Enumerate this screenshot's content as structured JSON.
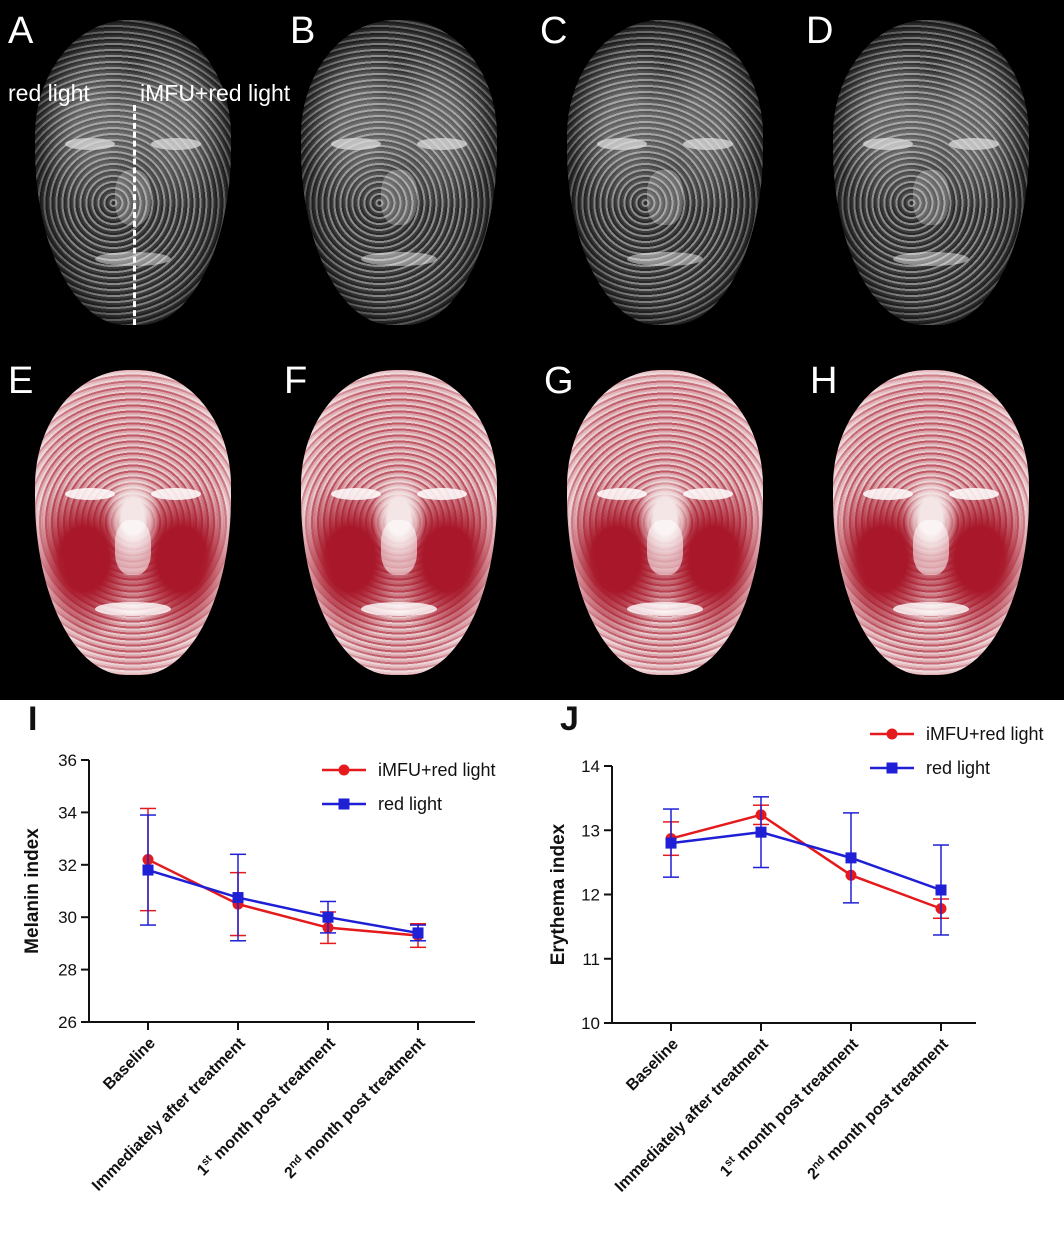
{
  "panels": {
    "top": [
      "A",
      "B",
      "C",
      "D"
    ],
    "bottom": [
      "E",
      "F",
      "G",
      "H"
    ],
    "annotation_left": "red light",
    "annotation_right": "iMFU+red light"
  },
  "colors": {
    "iMFU": "#e41a1c",
    "red_light": "#1f1fd6"
  },
  "chart_data": [
    {
      "panel": "I",
      "type": "line",
      "categories": [
        "Baseline",
        "Immediately after treatment",
        "1st month post treatment",
        "2nd month post treatment"
      ],
      "ylabel": "Melanin index",
      "ylim": [
        26,
        36
      ],
      "yticks": [
        26,
        28,
        30,
        32,
        34,
        36
      ],
      "legend": "top-right",
      "series": [
        {
          "name": "iMFU+red light",
          "marker": "circle",
          "values": [
            32.2,
            30.5,
            29.6,
            29.3
          ],
          "err": [
            1.95,
            1.2,
            0.6,
            0.45
          ]
        },
        {
          "name": "red light",
          "marker": "square",
          "values": [
            31.8,
            30.75,
            30.0,
            29.4
          ],
          "err": [
            2.1,
            1.65,
            0.6,
            0.3
          ]
        }
      ]
    },
    {
      "panel": "J",
      "type": "line",
      "categories": [
        "Baseline",
        "Immediately after treatment",
        "1st month post treatment",
        "2nd month post treatment"
      ],
      "ylabel": "Erythema index",
      "ylim": [
        10,
        14
      ],
      "yticks": [
        10,
        11,
        12,
        13,
        14
      ],
      "legend": "top-right",
      "series": [
        {
          "name": "iMFU+red light",
          "marker": "circle",
          "values": [
            12.87,
            13.24,
            12.3,
            11.78
          ],
          "err": [
            0.26,
            0.15,
            0.0,
            0.15
          ]
        },
        {
          "name": "red light",
          "marker": "square",
          "values": [
            12.8,
            12.97,
            12.57,
            12.07
          ],
          "err": [
            0.53,
            0.55,
            0.7,
            0.7
          ]
        }
      ]
    }
  ]
}
